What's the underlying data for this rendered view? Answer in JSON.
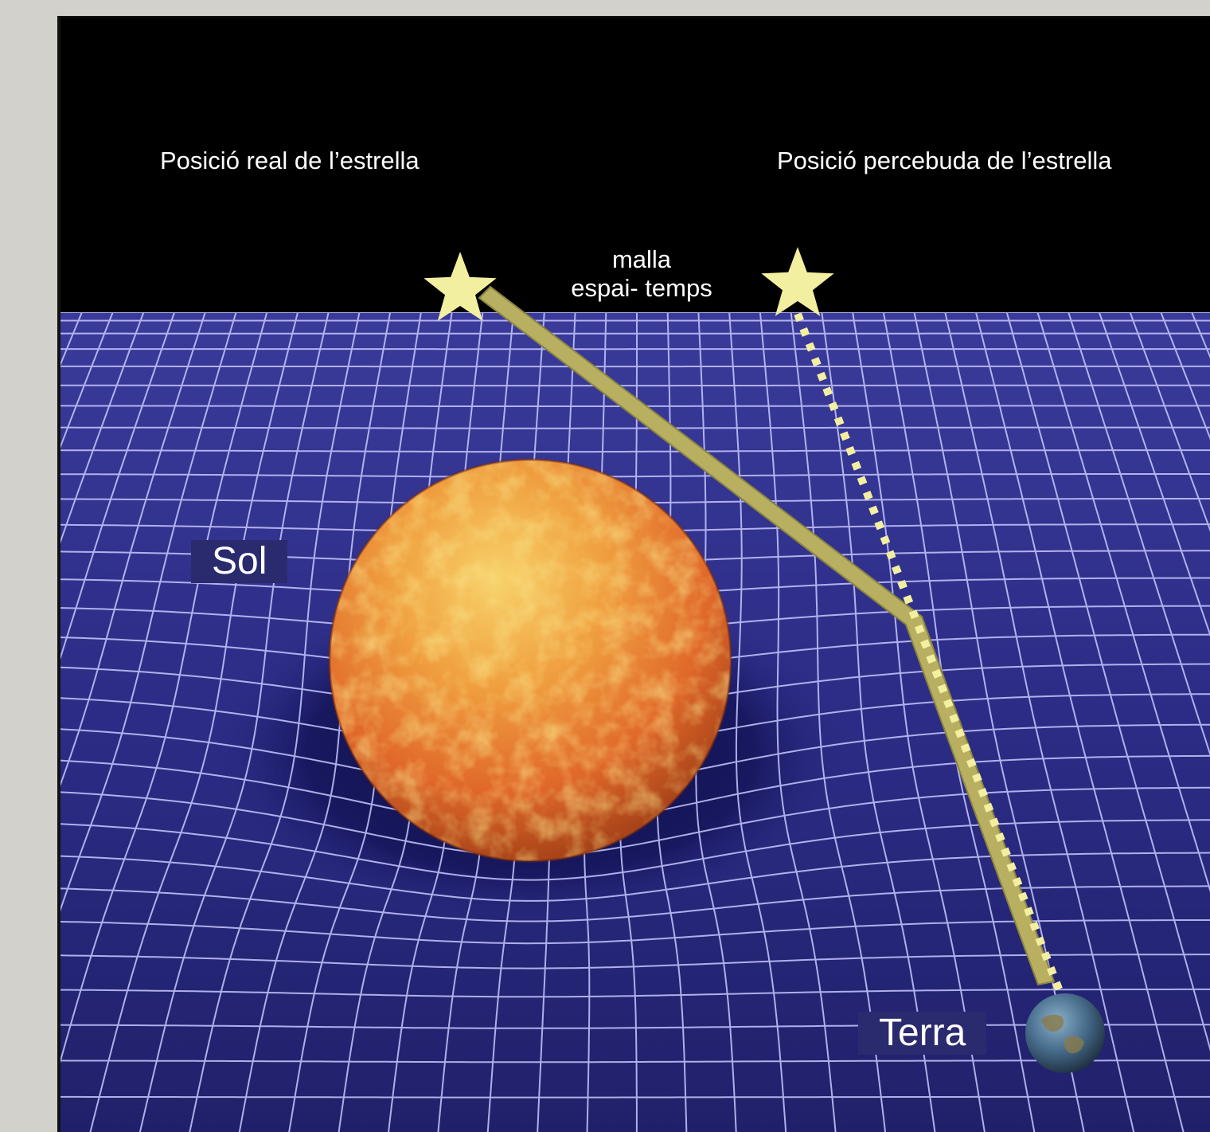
{
  "labels": {
    "real_position": "Posició real de l’estrella",
    "perceived_position": "Posició percebuda de l’estrella",
    "mesh_line1": "malla",
    "mesh_line2": "espai- temps",
    "sun": "Sol",
    "earth": "Terra"
  },
  "colors": {
    "page_background": "#d3d1cc",
    "sky": "#000000",
    "grid_plane": "#2a2a80",
    "grid_lines": "#c8c8ff",
    "star": "#f3efa0",
    "light_path": "#b8b060",
    "sun_base": "#e06a20",
    "earth": "#4a7aa0"
  },
  "icons": {
    "real_star": "star-icon",
    "perceived_star": "star-icon"
  }
}
